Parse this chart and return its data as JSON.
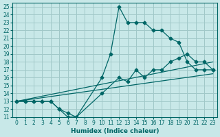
{
  "xlabel": "Humidex (Indice chaleur)",
  "background_color": "#c8e8e8",
  "grid_color": "#a0c8c8",
  "line_color": "#006666",
  "xlim": [
    -0.5,
    23.5
  ],
  "ylim": [
    11,
    25.5
  ],
  "xtick_labels": [
    "0",
    "1",
    "2",
    "3",
    "4",
    "5",
    "6",
    "7",
    "8",
    "9",
    "10",
    "11",
    "12",
    "13",
    "14",
    "15",
    "16",
    "17",
    "18",
    "19",
    "20",
    "21",
    "22",
    "23"
  ],
  "ytick_labels": [
    "11",
    "12",
    "13",
    "14",
    "15",
    "16",
    "17",
    "18",
    "19",
    "20",
    "21",
    "22",
    "23",
    "24",
    "25"
  ],
  "line1_x": [
    0,
    1,
    2,
    3,
    4,
    5,
    6,
    7,
    10,
    11,
    12,
    13,
    14,
    15,
    16,
    17,
    18,
    19,
    20,
    21,
    22,
    23
  ],
  "line1_y": [
    13,
    13,
    13,
    13,
    13,
    12,
    11,
    11,
    16,
    19,
    25,
    23,
    23,
    23,
    22,
    22,
    21,
    20.5,
    18,
    17,
    17,
    17
  ],
  "line2_x": [
    0,
    1,
    2,
    3,
    4,
    5,
    6,
    7,
    10,
    12,
    13,
    14,
    15,
    16,
    17,
    18,
    19,
    20,
    21,
    22,
    23
  ],
  "line2_y": [
    13,
    13,
    13,
    13,
    13,
    12,
    11.5,
    11,
    14,
    16,
    15.5,
    17,
    16,
    17,
    17,
    18,
    18.5,
    19,
    18,
    18,
    17
  ],
  "line3_x": [
    0,
    23
  ],
  "line3_y": [
    13,
    16.5
  ],
  "line4_x": [
    0,
    23
  ],
  "line4_y": [
    13,
    18
  ]
}
